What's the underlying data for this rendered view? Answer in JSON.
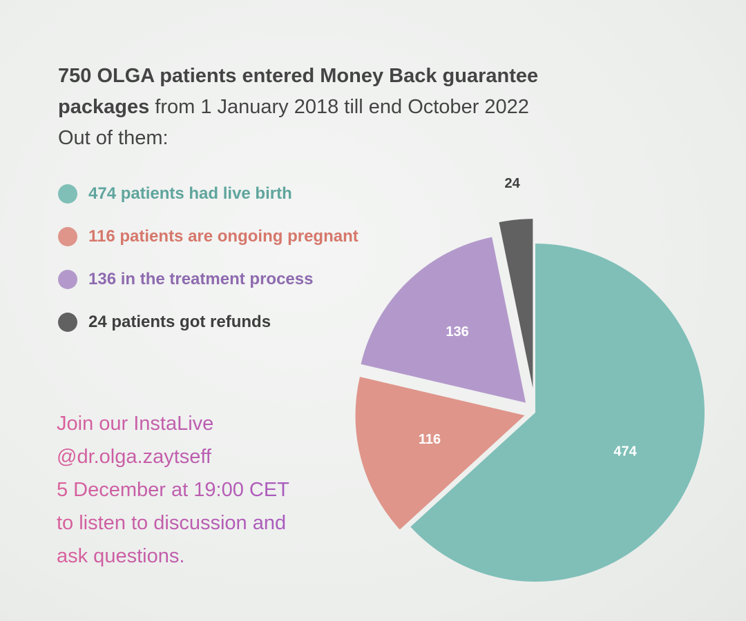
{
  "chart_data": {
    "type": "pie",
    "title": "750 OLGA patients entered Money Back guarantee packages",
    "title_continued": "from 1 January 2018 till end October 2022",
    "subtitle": "Out of them:",
    "categories": [
      "474 patients had live birth",
      "116 patients are ongoing pregnant",
      "136 in the treatment process",
      "24 patients got refunds"
    ],
    "values": [
      474,
      116,
      136,
      24
    ],
    "colors": [
      "#7fbfb8",
      "#df958a",
      "#b399cb",
      "#616161"
    ],
    "legend_text_colors": [
      "#5fa59d",
      "#d6776b",
      "#8e6aaf",
      "#3e3e3e"
    ],
    "annotation": [
      "Join our InstaLive",
      "@dr.olga.zaytseff",
      "5 December at 19:00 CET",
      "to listen to discussion and",
      "ask questions."
    ]
  }
}
